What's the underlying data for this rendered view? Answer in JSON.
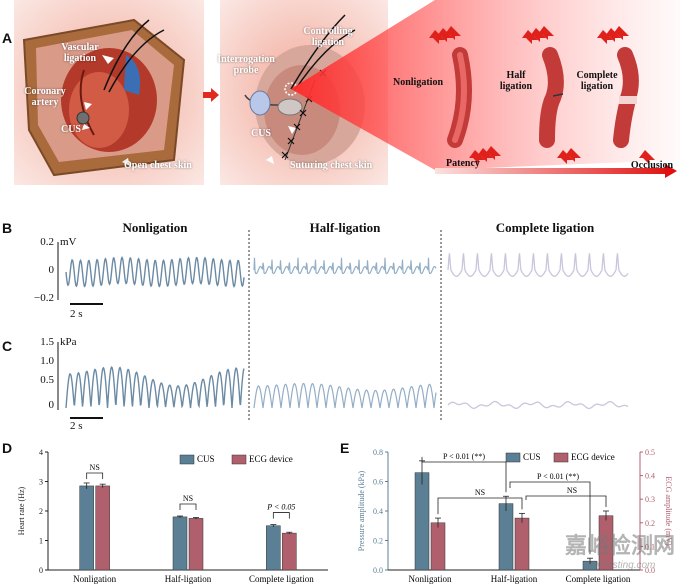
{
  "panels": {
    "A": "A",
    "B": "B",
    "C": "C",
    "D": "D",
    "E": "E"
  },
  "panelA": {
    "vascular_ligation": "Vascular ligation",
    "coronary_artery": "Coronary artery",
    "cus": "CUS",
    "open_chest_skin": "Open chest skin",
    "controlling_ligation": "Controlling ligation",
    "interrogation_probe": "Interrogation probe",
    "cus2": "CUS",
    "suturing_chest_skin": "Suturing chest skin",
    "nonligation": "Nonligation",
    "half_ligation": "Half ligation",
    "complete_ligation": "Complete ligation",
    "patency": "Patency",
    "occlusion": "Occlusion"
  },
  "panelBC": {
    "col_titles": [
      "Nonligation",
      "Half-ligation",
      "Complete ligation"
    ],
    "B_unit": "mV",
    "B_ticks": [
      "0.2",
      "0",
      "−0.2"
    ],
    "C_unit": "kPa",
    "C_ticks": [
      "1.5",
      "1.0",
      "0.5",
      "0"
    ],
    "scale_label": "2 s"
  },
  "chart_data": [
    {
      "type": "bar",
      "title": "",
      "categories": [
        "Nonligation",
        "Half-ligation",
        "Complete ligation"
      ],
      "series": [
        {
          "name": "CUS",
          "values": [
            2.85,
            1.8,
            1.5
          ],
          "errors": [
            0.1,
            0.03,
            0.04
          ],
          "color": "#5b7f95"
        },
        {
          "name": "ECG device",
          "values": [
            2.85,
            1.75,
            1.25
          ],
          "errors": [
            0.06,
            0.03,
            0.03
          ],
          "color": "#b0606d"
        }
      ],
      "ylabel": "Heart rate (Hz)",
      "ylim": [
        0,
        4
      ],
      "yticks": [
        "0",
        "1",
        "2",
        "3",
        "4"
      ],
      "annotations": [
        "NS",
        "NS",
        "P < 0.05"
      ],
      "legend": "top-right"
    },
    {
      "type": "bar",
      "title": "",
      "categories": [
        "Nonligation",
        "Half-ligation",
        "Complete ligation"
      ],
      "series": [
        {
          "name": "CUS",
          "axis": "left",
          "values": [
            0.66,
            0.45,
            0.06
          ],
          "errors": [
            0.08,
            0.05,
            0.02
          ],
          "color": "#5b7f95"
        },
        {
          "name": "ECG device",
          "axis": "right",
          "values": [
            0.2,
            0.22,
            0.23
          ],
          "errors": [
            0.02,
            0.02,
            0.02
          ],
          "color": "#b0606d"
        }
      ],
      "ylabel": "Pressure amplitude (kPa)",
      "ylabel_right": "ECG amplitude (mV)",
      "ylim": [
        0,
        0.8
      ],
      "ylim_right": [
        0,
        0.5
      ],
      "yticks": [
        "0.0",
        "0.2",
        "0.4",
        "0.6",
        "0.8"
      ],
      "yticks_right": [
        "0.0",
        "0.1",
        "0.2",
        "0.3",
        "0.4",
        "0.5"
      ],
      "annotations": [
        "P < 0.01 (**)",
        "P < 0.01 (**)",
        "NS",
        "NS"
      ],
      "legend": "top-right"
    }
  ],
  "watermark": {
    "text": "嘉峪检测网",
    "sub": "AnyTesting.com"
  }
}
